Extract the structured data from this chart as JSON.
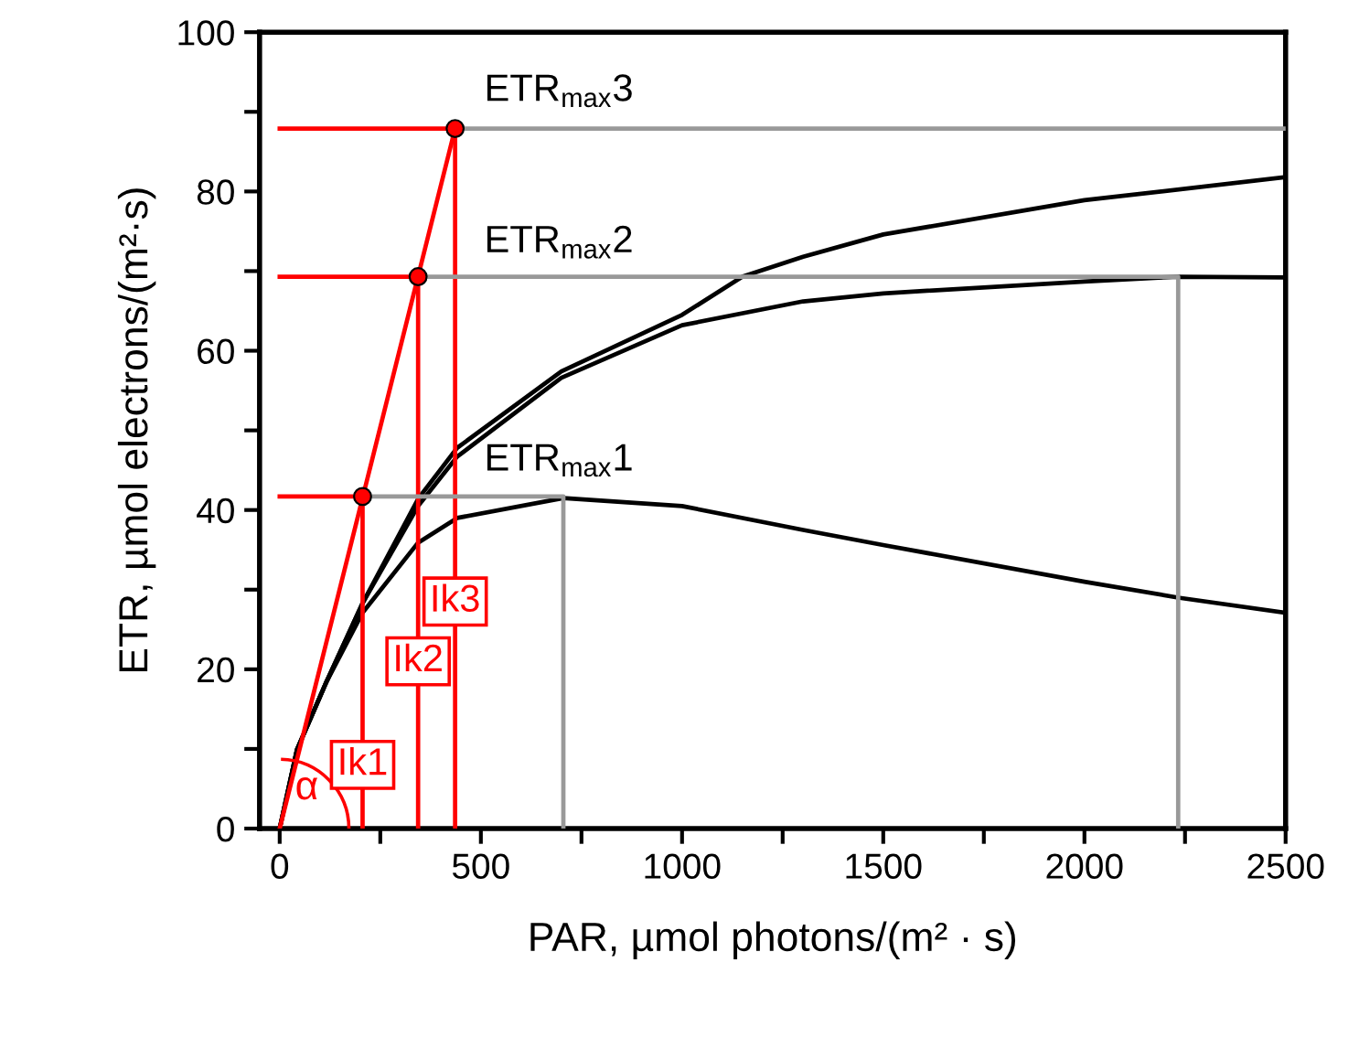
{
  "chart_data": {
    "type": "line",
    "xlabel": "PAR, µmol photons/(m² · s)",
    "ylabel": "ETR, µmol electrons/(m²·s)",
    "xlim": [
      -50,
      2500
    ],
    "ylim": [
      0,
      100
    ],
    "xticks": [
      0,
      {
        "value": 250,
        "label": null
      },
      500,
      {
        "value": 750,
        "label": null
      },
      1000,
      {
        "value": 1250,
        "label": null
      },
      1500,
      {
        "value": 1750,
        "label": null
      },
      2000,
      {
        "value": 2250,
        "label": null
      },
      2500
    ],
    "yticks": [
      0,
      {
        "value": 10,
        "label": null
      },
      20,
      {
        "value": 30,
        "label": null
      },
      40,
      {
        "value": 50,
        "label": null
      },
      60,
      {
        "value": 70,
        "label": null
      },
      80,
      {
        "value": 90,
        "label": null
      },
      100
    ],
    "grid": false,
    "legend": false,
    "line_style": "solid",
    "series": [
      {
        "color": "#000000",
        "x": [
          0,
          43,
          116,
          206,
          344,
          441,
          705,
          1000,
          1301,
          1500,
          2000,
          2233,
          2500
        ],
        "values": [
          0,
          9.9,
          18.4,
          27.1,
          35.9,
          39,
          41.5,
          40.5,
          37.5,
          35.6,
          31,
          29,
          27.1
        ]
      },
      {
        "color": "#000000",
        "x": [
          0,
          43,
          116,
          206,
          344,
          441,
          700,
          1000,
          1301,
          1500,
          2000,
          2233,
          2500
        ],
        "values": [
          0,
          9.9,
          18.4,
          28.3,
          40.5,
          46.7,
          56.6,
          63.2,
          66.2,
          67.2,
          68.7,
          69.3,
          69.2
        ]
      },
      {
        "color": "#000000",
        "x": [
          0,
          43,
          116,
          206,
          344,
          441,
          700,
          1000,
          1150,
          1301,
          1500,
          2000,
          2500
        ],
        "values": [
          0,
          9.9,
          18.4,
          28.3,
          41.4,
          47.8,
          57.4,
          64.5,
          69.3,
          71.8,
          74.6,
          78.9,
          81.8
        ]
      },
      {
        "color": "#ff0000",
        "x": [
          0,
          436
        ],
        "values": [
          0,
          87.9
        ]
      },
      {
        "type": "scatter",
        "marker": "circle",
        "color": "#ff0000",
        "x": [
          206,
          344,
          436
        ],
        "values": [
          41.7,
          69.3,
          87.9
        ]
      },
      {
        "color": "#ff0000",
        "x": [
          0,
          206,
          206
        ],
        "values": [
          41.7,
          41.7,
          0
        ]
      },
      {
        "color": "#ff0000",
        "x": [
          0,
          344,
          344
        ],
        "values": [
          69.3,
          69.3,
          0
        ]
      },
      {
        "color": "#ff0000",
        "x": [
          0,
          436,
          436
        ],
        "values": [
          87.9,
          87.9,
          0
        ]
      },
      {
        "color": "#999999",
        "x": [
          206,
          705,
          705
        ],
        "values": [
          41.7,
          41.7,
          0
        ]
      },
      {
        "color": "#999999",
        "x": [
          344,
          2233,
          2233
        ],
        "values": [
          69.3,
          69.3,
          0
        ]
      },
      {
        "color": "#999999",
        "x": [
          436,
          2500
        ],
        "values": [
          87.9,
          87.9
        ]
      }
    ],
    "annotations": [
      "ETR$_{max}$1",
      "ETR$_{max}$2",
      "ETR$_{max}$3",
      {
        "text": "Ik1",
        "x": 206,
        "y": 8
      },
      {
        "text": "Ik2",
        "x": 344,
        "y": 21
      },
      {
        "text": "Ik3",
        "x": 436,
        "y": 28.5
      },
      "α"
    ]
  }
}
